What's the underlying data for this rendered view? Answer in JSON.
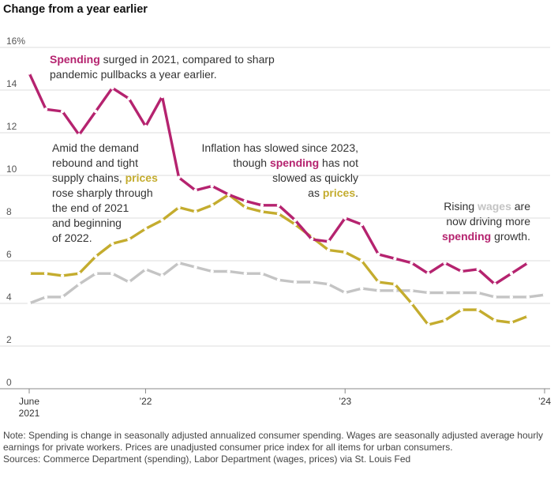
{
  "title": "Change from a year earlier",
  "chart_data": {
    "type": "line",
    "x": [
      "2021-06",
      "2021-07",
      "2021-08",
      "2021-09",
      "2021-10",
      "2021-11",
      "2021-12",
      "2022-01",
      "2022-02",
      "2022-03",
      "2022-04",
      "2022-05",
      "2022-06",
      "2022-07",
      "2022-08",
      "2022-09",
      "2022-10",
      "2022-11",
      "2022-12",
      "2023-01",
      "2023-02",
      "2023-03",
      "2023-04",
      "2023-05",
      "2023-06",
      "2023-07",
      "2023-08",
      "2023-09",
      "2023-10",
      "2023-11",
      "2023-12",
      "2024-01"
    ],
    "series": [
      {
        "name": "Spending",
        "color": "#b5236f",
        "values": [
          14.8,
          13.1,
          13.0,
          11.9,
          13.0,
          14.1,
          13.6,
          12.3,
          13.7,
          9.9,
          9.3,
          9.5,
          9.1,
          8.8,
          8.6,
          8.6,
          7.9,
          7.0,
          6.9,
          8.0,
          7.7,
          6.3,
          6.1,
          5.9,
          5.4,
          5.9,
          5.5,
          5.6,
          4.9,
          5.4,
          5.9,
          null
        ]
      },
      {
        "name": "Prices",
        "color": "#c4ac2e",
        "values": [
          5.4,
          5.4,
          5.3,
          5.4,
          6.2,
          6.8,
          7.0,
          7.5,
          7.9,
          8.5,
          8.3,
          8.6,
          9.1,
          8.5,
          8.3,
          8.2,
          7.7,
          7.1,
          6.5,
          6.4,
          6.0,
          5.0,
          4.9,
          4.0,
          3.0,
          3.2,
          3.7,
          3.7,
          3.2,
          3.1,
          3.4,
          null
        ]
      },
      {
        "name": "Wages",
        "color": "#c4c4c4",
        "values": [
          4.0,
          4.3,
          4.3,
          4.9,
          5.4,
          5.4,
          5.0,
          5.6,
          5.3,
          5.9,
          5.7,
          5.5,
          5.5,
          5.4,
          5.4,
          5.1,
          5.0,
          5.0,
          4.9,
          4.5,
          4.7,
          4.6,
          4.6,
          4.6,
          4.5,
          4.5,
          4.5,
          4.5,
          4.3,
          4.3,
          4.3,
          4.4
        ]
      }
    ],
    "y_ticks": [
      "16%",
      "14",
      "12",
      "10",
      "8",
      "6",
      "4",
      "2",
      "0"
    ],
    "x_ticks": [
      {
        "x": "2021-06",
        "label": "June",
        "sublabel": "2021"
      },
      {
        "x": "2022-01",
        "label": "’22",
        "sublabel": ""
      },
      {
        "x": "2023-01",
        "label": "’23",
        "sublabel": ""
      },
      {
        "x": "2024-01",
        "label": "’24",
        "sublabel": ""
      }
    ],
    "ylim": [
      0,
      16
    ],
    "grid": true,
    "annotations": [
      {
        "lines": [
          [
            {
              "t": "Spending",
              "s": "Spending"
            },
            {
              "t": " surged in 2021, compared to sharp"
            }
          ],
          [
            {
              "t": "pandemic pullbacks a year earlier."
            }
          ]
        ]
      },
      {
        "lines": [
          [
            {
              "t": "Amid the demand"
            }
          ],
          [
            {
              "t": "rebound and tight"
            }
          ],
          [
            {
              "t": "supply chains, "
            },
            {
              "t": "prices",
              "s": "Prices"
            }
          ],
          [
            {
              "t": "rose sharply through"
            }
          ],
          [
            {
              "t": "the end of 2021"
            }
          ],
          [
            {
              "t": "and beginning"
            }
          ],
          [
            {
              "t": "of 2022."
            }
          ]
        ]
      },
      {
        "lines": [
          [
            {
              "t": "Inflation has slowed since 2023,"
            }
          ],
          [
            {
              "t": "though "
            },
            {
              "t": "spending",
              "s": "Spending"
            },
            {
              "t": " has not"
            }
          ],
          [
            {
              "t": "slowed as quickly"
            }
          ],
          [
            {
              "t": "as "
            },
            {
              "t": "prices",
              "s": "Prices"
            },
            {
              "t": "."
            }
          ]
        ]
      },
      {
        "lines": [
          [
            {
              "t": "Rising "
            },
            {
              "t": "wages",
              "s": "Wages"
            },
            {
              "t": " are"
            }
          ],
          [
            {
              "t": "now driving more"
            }
          ],
          [
            {
              "t": "spending",
              "s": "Spending"
            },
            {
              "t": " growth."
            }
          ]
        ]
      }
    ]
  },
  "note": "Note: Spending is change in seasonally adjusted annualized consumer spending. Wages are seasonally adjusted average hourly earnings for private workers. Prices are unadjusted consumer price index for all items for urban consumers.",
  "sources": "Sources: Commerce Department (spending), Labor Department (wages, prices) via St. Louis Fed"
}
